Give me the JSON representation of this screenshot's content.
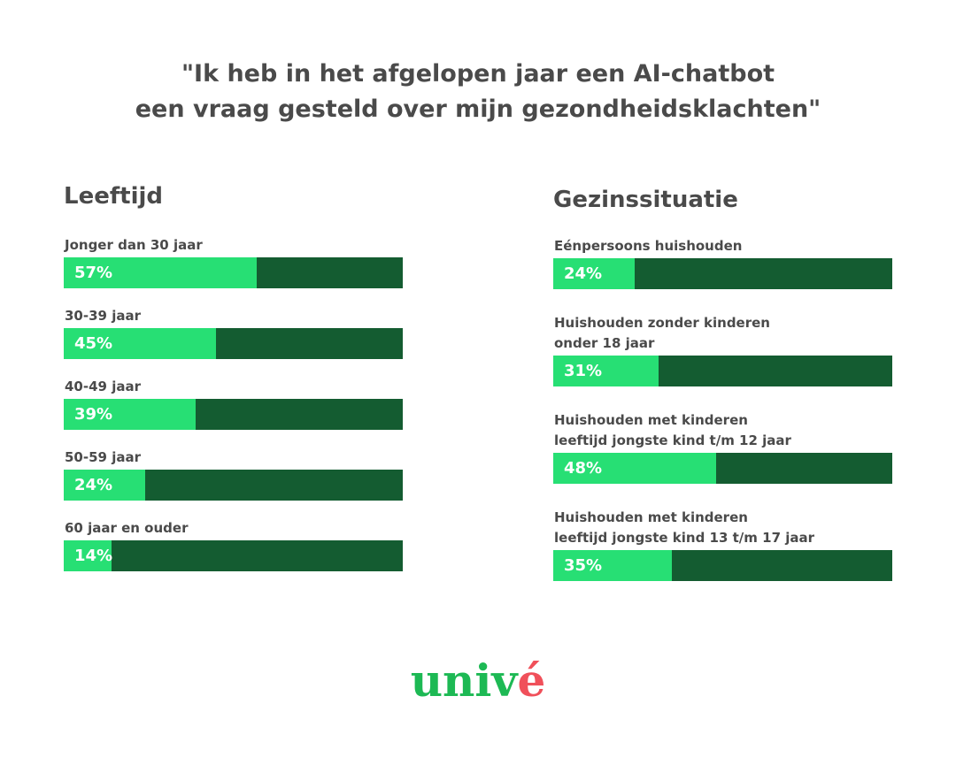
{
  "title": "\"Ik heb in het afgelopen jaar een AI-chatbot\neen vraag gesteld over mijn gezondheidsklachten\"",
  "chart_data": [
    {
      "type": "bar",
      "title": "Leeftijd",
      "categories": [
        "Jonger dan 30 jaar",
        "30-39 jaar",
        "40-49 jaar",
        "50-59 jaar",
        "60 jaar en ouder"
      ],
      "values": [
        57,
        45,
        39,
        24,
        14
      ],
      "value_labels": [
        "57%",
        "45%",
        "39%",
        "24%",
        "14%"
      ],
      "xlim": [
        0,
        100
      ],
      "color": "#27df74",
      "track_color": "#145c31"
    },
    {
      "type": "bar",
      "title": "Gezinssituatie",
      "categories": [
        "Eénpersoons huishouden",
        "Huishouden zonder kinderen\nonder 18 jaar",
        "Huishouden met kinderen\nleeftijd jongste kind t/m 12 jaar",
        "Huishouden met kinderen\nleeftijd jongste kind 13 t/m 17 jaar"
      ],
      "values": [
        24,
        31,
        48,
        35
      ],
      "value_labels": [
        "24%",
        "31%",
        "48%",
        "35%"
      ],
      "xlim": [
        0,
        100
      ],
      "color": "#27df74",
      "track_color": "#145c31"
    }
  ],
  "logo": [
    "univ",
    "é"
  ]
}
